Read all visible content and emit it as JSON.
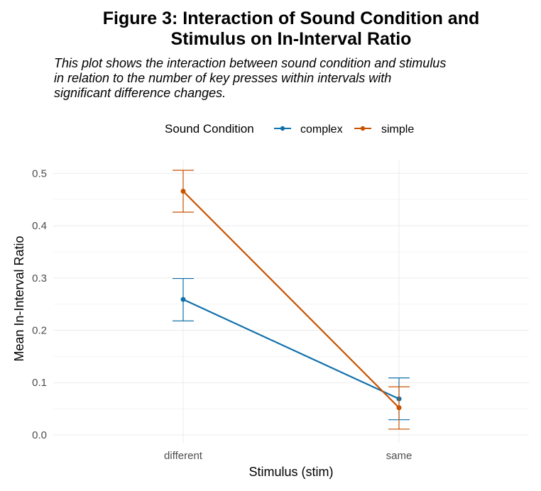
{
  "chart_data": {
    "type": "line",
    "title_line1": "Figure 3: Interaction of Sound Condition and",
    "title_line2": "Stimulus on In-Interval Ratio",
    "subtitle_line1": "This plot shows the interaction between sound condition and stimulus",
    "subtitle_line2": "in relation to the number of key presses within intervals with",
    "subtitle_line3": "significant difference changes.",
    "xlabel": "Stimulus (stim)",
    "ylabel": "Mean In-Interval Ratio",
    "categories": [
      "different",
      "same"
    ],
    "ylim": [
      -0.015,
      0.525
    ],
    "yticks": [
      {
        "value": 0.0,
        "label": "0.0"
      },
      {
        "value": 0.1,
        "label": "0.1"
      },
      {
        "value": 0.2,
        "label": "0.2"
      },
      {
        "value": 0.3,
        "label": "0.3"
      },
      {
        "value": 0.4,
        "label": "0.4"
      },
      {
        "value": 0.5,
        "label": "0.5"
      }
    ],
    "grid": true,
    "legend": {
      "title": "Sound Condition",
      "position": "top"
    },
    "series": [
      {
        "name": "complex",
        "color": "#1170AA",
        "values": [
          0.259,
          0.069
        ],
        "error_low": [
          0.218,
          0.029
        ],
        "error_high": [
          0.299,
          0.109
        ]
      },
      {
        "name": "simple",
        "color": "#C85200",
        "values": [
          0.466,
          0.052
        ],
        "error_low": [
          0.426,
          0.011
        ],
        "error_high": [
          0.506,
          0.092
        ]
      }
    ]
  }
}
